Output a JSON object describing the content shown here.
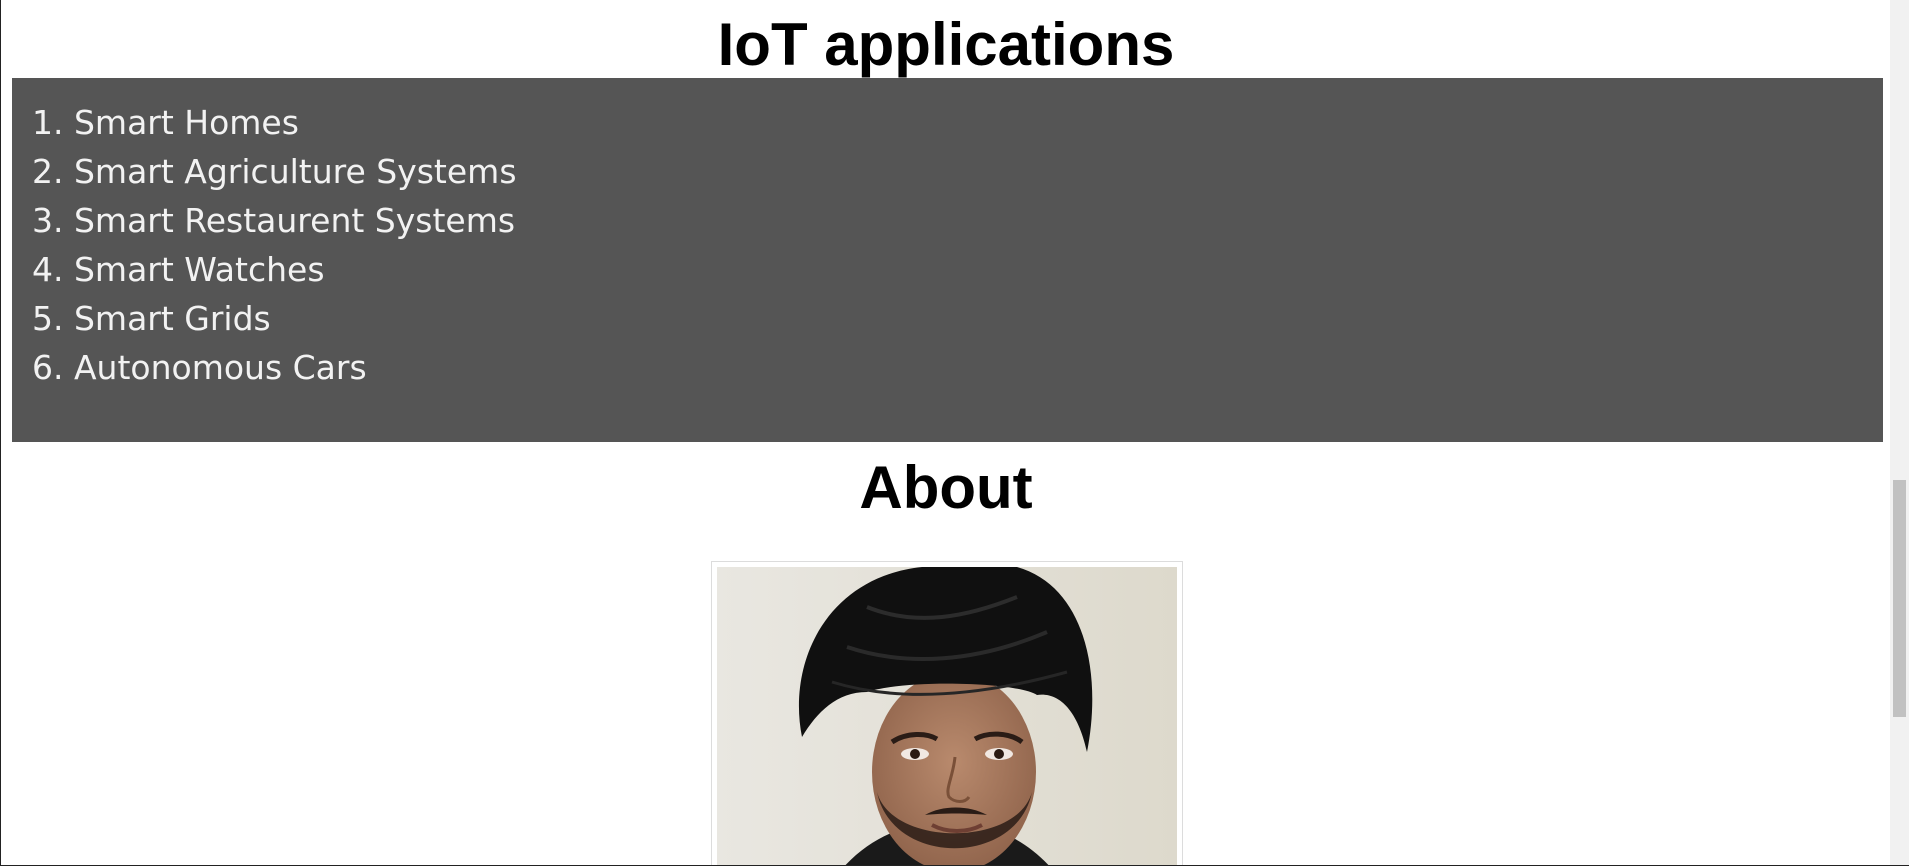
{
  "iot_section": {
    "title": "IoT applications",
    "items": [
      "1. Smart Homes",
      "2. Smart Agriculture Systems",
      "3. Smart Restaurent Systems",
      "4. Smart Watches",
      "5. Smart Grids",
      "6. Autonomous Cars"
    ]
  },
  "about_section": {
    "title": "About"
  },
  "colors": {
    "list_background": "#555555",
    "list_text": "#f2f2f2",
    "turban": "#111111",
    "photo_background": "#e8e6df"
  }
}
